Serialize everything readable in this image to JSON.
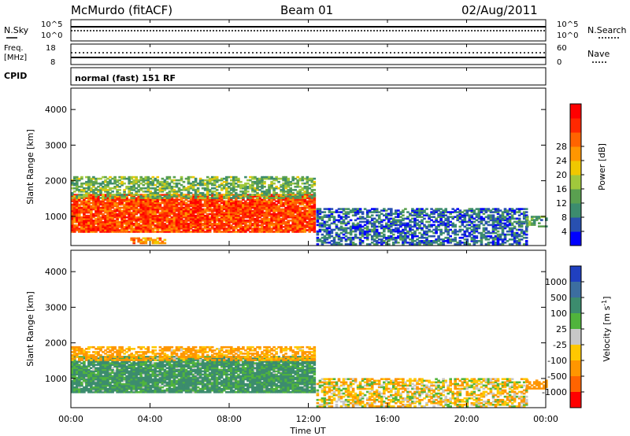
{
  "header": {
    "station": "McMurdo (fitACF)",
    "beam": "Beam 01",
    "date": "02/Aug/2011"
  },
  "panels": {
    "nsky": {
      "left_label": "N.Sky",
      "left_ticks": [
        "10^5",
        "10^0"
      ],
      "right_label": "N.Search",
      "right_ticks": [
        "10^5",
        "10^0"
      ]
    },
    "freq": {
      "left_label_1": "Freq.",
      "left_label_2": "[MHz]",
      "left_ticks": [
        "18",
        "8"
      ],
      "right_label": "Nave",
      "right_ticks": [
        "60",
        "0"
      ]
    },
    "cpid": {
      "label": "CPID",
      "text": "normal (fast) 151 RF"
    }
  },
  "chart_data": [
    {
      "type": "heatmap",
      "title": "",
      "xlabel": "Time UT",
      "ylabel": "Slant Range [km]",
      "xlim": [
        0,
        24
      ],
      "ylim": [
        180,
        4600
      ],
      "x_ticks": [
        "00:00",
        "04:00",
        "08:00",
        "12:00",
        "16:00",
        "20:00",
        "00:00"
      ],
      "y_ticks": [
        1000,
        2000,
        3000,
        4000
      ],
      "colorbar_label": "Power [dB]",
      "colorbar_ticks": [
        "4",
        "8",
        "12",
        "16",
        "20",
        "24",
        "28"
      ],
      "colorbar_colors": [
        "#0000ff",
        "#2850b0",
        "#3c8c6e",
        "#5aa050",
        "#a0c83c",
        "#f0c800",
        "#ff9600",
        "#ff6400",
        "#ff2800",
        "#ff0000"
      ],
      "regions": [
        {
          "t0": 0.0,
          "t1": 12.3,
          "r0": 550,
          "r1": 1600,
          "value": 26
        },
        {
          "t0": 0.0,
          "t1": 12.3,
          "r0": 1500,
          "r1": 2100,
          "value": 12
        },
        {
          "t0": 3.0,
          "t1": 4.8,
          "r0": 230,
          "r1": 400,
          "value": 22
        },
        {
          "t0": 12.4,
          "t1": 23.0,
          "r0": 200,
          "r1": 1200,
          "value": 6
        },
        {
          "t0": 23.0,
          "t1": 24.0,
          "r0": 700,
          "r1": 1000,
          "value": 10
        }
      ]
    },
    {
      "type": "heatmap",
      "title": "",
      "xlabel": "Time UT",
      "ylabel": "Slant Range [km]",
      "xlim": [
        0,
        24
      ],
      "ylim": [
        180,
        4600
      ],
      "x_ticks": [
        "00:00",
        "04:00",
        "08:00",
        "12:00",
        "16:00",
        "20:00",
        "00:00"
      ],
      "y_ticks": [
        1000,
        2000,
        3000,
        4000
      ],
      "colorbar_label": "Velocity [m s^-1]",
      "colorbar_ticks": [
        "1000",
        "500",
        "100",
        "25",
        "-25",
        "-100",
        "-500",
        "-1000"
      ],
      "colorbar_colors": [
        "#2040c0",
        "#3c6ea0",
        "#3c8c6e",
        "#50b43c",
        "#c8c8c8",
        "#ffc800",
        "#ff9600",
        "#ff6400",
        "#ff0000"
      ],
      "regions": [
        {
          "t0": 0.0,
          "t1": 12.3,
          "r0": 600,
          "r1": 1600,
          "value": 150
        },
        {
          "t0": 0.0,
          "t1": 12.3,
          "r0": 1500,
          "r1": 1900,
          "value": -150
        },
        {
          "t0": 12.4,
          "t1": 23.0,
          "r0": 200,
          "r1": 1000,
          "value": -50
        },
        {
          "t0": 23.0,
          "t1": 24.0,
          "r0": 700,
          "r1": 950,
          "value": -300
        }
      ]
    }
  ]
}
